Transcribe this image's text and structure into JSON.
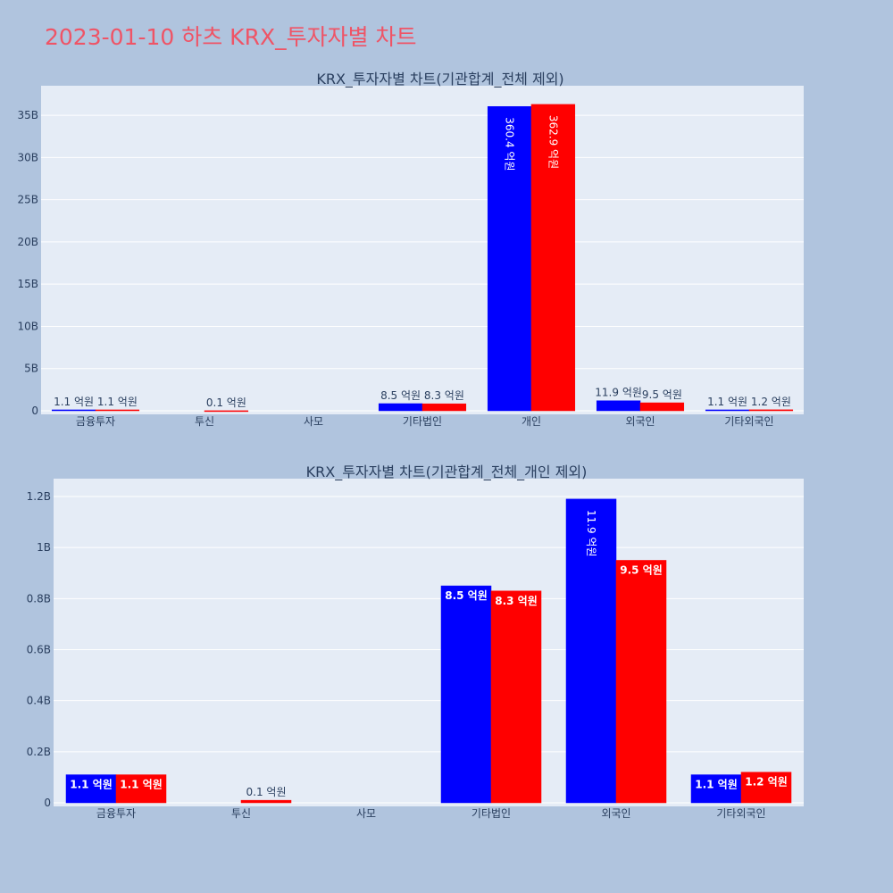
{
  "title": "2023-01-10 하츠 KRX_투자자별 차트",
  "colors": {
    "buy": "#0000ff",
    "sell": "#ff0000",
    "title": "#ef5466"
  },
  "chart_data": [
    {
      "type": "bar",
      "title": "KRX_투자자별 차트(기관합계_전체 제외)",
      "categories": [
        "금융투자",
        "투신",
        "사모",
        "기타법인",
        "개인",
        "외국인",
        "기타외국인"
      ],
      "series": [
        {
          "color": "#0000ff",
          "values": [
            110000000,
            0,
            0,
            850000000,
            36040000000,
            1190000000,
            110000000
          ],
          "labels": [
            "1.1 억원",
            "",
            "",
            "8.5 억원",
            "360.4 억원",
            "11.9 억원",
            "1.1 억원"
          ]
        },
        {
          "color": "#ff0000",
          "values": [
            110000000,
            10000000,
            0,
            830000000,
            36290000000,
            950000000,
            120000000
          ],
          "labels": [
            "1.1 억원",
            "0.1 억원",
            "",
            "8.3 억원",
            "362.9 억원",
            "9.5 억원",
            "1.2 억원"
          ]
        }
      ],
      "ylim": [
        0,
        38500000000
      ],
      "yticks": [
        0,
        5000000000,
        10000000000,
        15000000000,
        20000000000,
        25000000000,
        30000000000,
        35000000000
      ],
      "ytick_labels": [
        "0",
        "5B",
        "10B",
        "15B",
        "20B",
        "25B",
        "30B",
        "35B"
      ],
      "grid": true
    },
    {
      "type": "bar",
      "title": "KRX_투자자별 차트(기관합계_전체_개인 제외)",
      "categories": [
        "금융투자",
        "투신",
        "사모",
        "기타법인",
        "외국인",
        "기타외국인"
      ],
      "series": [
        {
          "color": "#0000ff",
          "values": [
            110000000,
            0,
            0,
            850000000,
            1190000000,
            110000000
          ],
          "labels": [
            "1.1 억원",
            "",
            "",
            "8.5 억원",
            "11.9 억원",
            "1.1 억원"
          ]
        },
        {
          "color": "#ff0000",
          "values": [
            110000000,
            10000000,
            0,
            830000000,
            950000000,
            120000000
          ],
          "labels": [
            "1.1 억원",
            "0.1 억원",
            "",
            "8.3 억원",
            "9.5 억원",
            "1.2 억원"
          ]
        }
      ],
      "ylim": [
        0,
        1270000000
      ],
      "yticks": [
        0,
        200000000,
        400000000,
        600000000,
        800000000,
        1000000000,
        1200000000
      ],
      "ytick_labels": [
        "0",
        "0.2B",
        "0.4B",
        "0.6B",
        "0.8B",
        "1B",
        "1.2B"
      ],
      "grid": true
    }
  ]
}
